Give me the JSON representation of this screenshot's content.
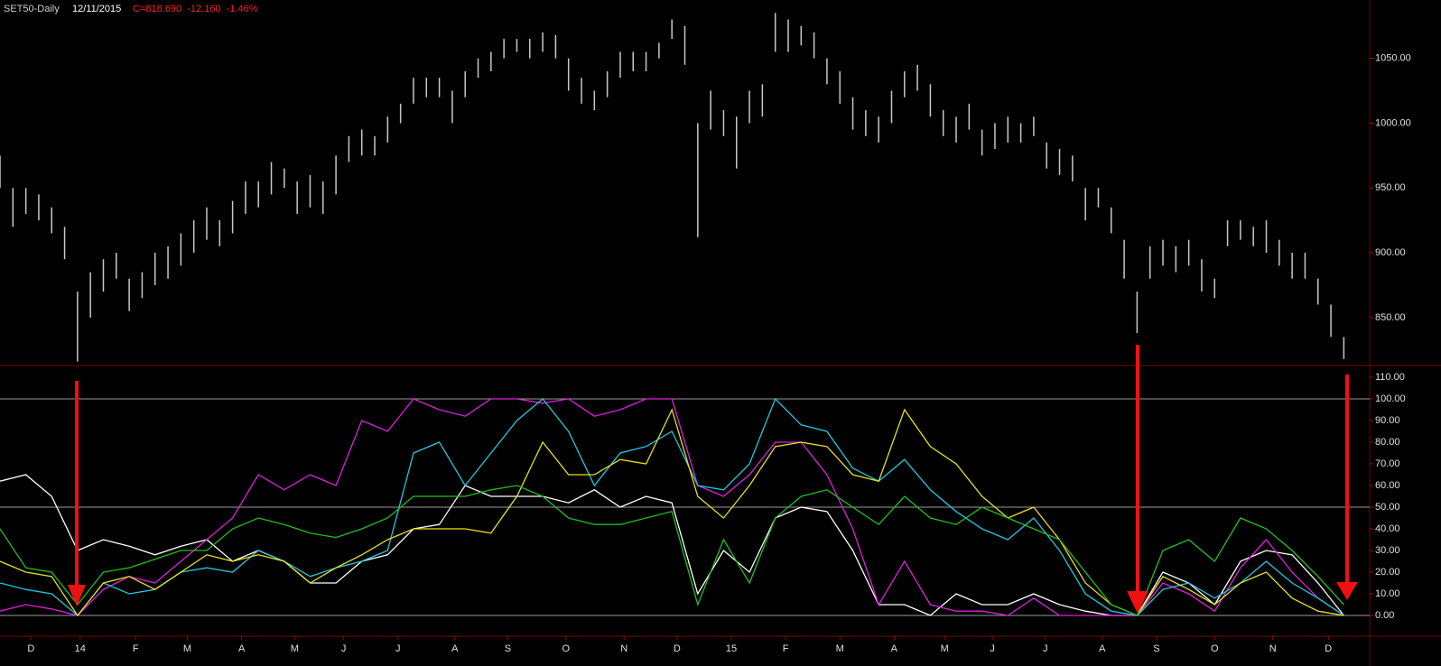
{
  "chart_data": [
    {
      "type": "ohlc",
      "title": "SET50-Daily",
      "date": "12/11/2015",
      "annotation": "C=818.690  -12.160  -1.46%",
      "color": "#c8c8c8",
      "x": [
        0,
        1,
        2,
        3,
        4,
        5,
        6,
        7,
        8,
        9,
        10,
        11,
        12,
        13,
        14,
        15,
        16,
        17,
        18,
        19,
        20,
        21,
        22,
        23,
        24,
        25,
        26,
        27,
        28,
        29,
        30,
        31,
        32,
        33,
        34,
        35,
        36,
        37,
        38,
        39,
        40,
        41,
        42,
        43,
        44,
        45,
        46,
        47,
        48,
        49,
        50,
        51,
        52,
        53,
        54,
        55,
        56,
        57,
        58,
        59,
        60,
        61,
        62,
        63,
        64,
        65,
        66,
        67,
        68,
        69,
        70,
        71,
        72,
        73,
        74,
        75,
        76,
        77,
        78,
        79,
        80,
        81,
        82,
        83,
        84,
        85,
        86,
        87,
        88,
        89,
        90,
        91,
        92,
        93,
        94,
        95,
        96,
        97,
        98,
        99,
        100,
        101,
        102,
        103,
        104
      ],
      "high": [
        975,
        950,
        950,
        945,
        935,
        920,
        870,
        885,
        895,
        900,
        880,
        885,
        900,
        905,
        915,
        925,
        935,
        925,
        940,
        955,
        955,
        970,
        965,
        955,
        960,
        955,
        975,
        990,
        995,
        990,
        1005,
        1015,
        1035,
        1035,
        1035,
        1025,
        1040,
        1050,
        1055,
        1065,
        1065,
        1065,
        1070,
        1068,
        1050,
        1035,
        1025,
        1040,
        1055,
        1055,
        1055,
        1062,
        1080,
        1075,
        1000,
        1025,
        1010,
        1005,
        1025,
        1030,
        1085,
        1080,
        1075,
        1070,
        1050,
        1040,
        1020,
        1010,
        1005,
        1025,
        1040,
        1045,
        1030,
        1010,
        1005,
        1015,
        995,
        1000,
        1005,
        1000,
        1005,
        985,
        980,
        975,
        950,
        950,
        935,
        910,
        870,
        905,
        910,
        905,
        910,
        895,
        880,
        925,
        925,
        920,
        925,
        910,
        900,
        900,
        880,
        860,
        835
      ],
      "low": [
        950,
        920,
        930,
        925,
        915,
        895,
        816,
        850,
        870,
        880,
        855,
        865,
        875,
        880,
        890,
        900,
        910,
        905,
        915,
        930,
        935,
        945,
        950,
        930,
        935,
        930,
        945,
        970,
        975,
        975,
        985,
        1000,
        1015,
        1020,
        1020,
        1000,
        1020,
        1035,
        1040,
        1050,
        1055,
        1050,
        1055,
        1050,
        1025,
        1015,
        1010,
        1020,
        1035,
        1040,
        1040,
        1050,
        1065,
        1045,
        912,
        995,
        990,
        965,
        1000,
        1005,
        1055,
        1055,
        1060,
        1050,
        1030,
        1015,
        995,
        990,
        985,
        1000,
        1020,
        1025,
        1005,
        990,
        985,
        995,
        975,
        980,
        985,
        985,
        990,
        965,
        960,
        955,
        925,
        935,
        915,
        880,
        838,
        880,
        890,
        885,
        890,
        870,
        865,
        905,
        910,
        905,
        900,
        890,
        880,
        880,
        860,
        835,
        818
      ],
      "xlim": [
        0,
        106
      ],
      "ylim": [
        813,
        1095
      ],
      "yticks": [
        {
          "value": 1050,
          "label": "1050.00"
        },
        {
          "value": 1000,
          "label": "1000.00"
        },
        {
          "value": 950,
          "label": "950.00"
        },
        {
          "value": 900,
          "label": "900.00"
        },
        {
          "value": 850,
          "label": "850.00"
        }
      ]
    },
    {
      "type": "line",
      "x": [
        0,
        2,
        4,
        6,
        8,
        10,
        12,
        14,
        16,
        18,
        20,
        22,
        24,
        26,
        28,
        30,
        32,
        34,
        36,
        38,
        40,
        42,
        44,
        46,
        48,
        50,
        52,
        54,
        56,
        58,
        60,
        62,
        64,
        66,
        68,
        70,
        72,
        74,
        76,
        78,
        80,
        82,
        84,
        86,
        88,
        90,
        92,
        94,
        96,
        98,
        100,
        102,
        104
      ],
      "series": [
        {
          "color": "#ffffff",
          "values": [
            62,
            65,
            55,
            30,
            35,
            32,
            28,
            32,
            35,
            25,
            30,
            25,
            15,
            15,
            25,
            28,
            40,
            42,
            60,
            55,
            55,
            55,
            52,
            58,
            50,
            55,
            52,
            10,
            30,
            20,
            45,
            50,
            48,
            30,
            5,
            5,
            0,
            10,
            5,
            5,
            10,
            5,
            2,
            0,
            0,
            20,
            15,
            5,
            25,
            30,
            28,
            15,
            0
          ]
        },
        {
          "color": "#e020e0",
          "values": [
            2,
            5,
            3,
            0,
            12,
            18,
            15,
            25,
            35,
            45,
            65,
            58,
            65,
            60,
            90,
            85,
            100,
            95,
            92,
            100,
            100,
            98,
            100,
            92,
            95,
            100,
            100,
            60,
            55,
            65,
            80,
            80,
            65,
            40,
            5,
            25,
            5,
            2,
            2,
            0,
            8,
            0,
            0,
            0,
            0,
            15,
            10,
            2,
            22,
            35,
            20,
            8,
            0
          ]
        },
        {
          "color": "#20c8e0",
          "values": [
            15,
            12,
            10,
            0,
            15,
            10,
            12,
            20,
            22,
            20,
            30,
            25,
            18,
            22,
            25,
            30,
            75,
            80,
            60,
            75,
            90,
            100,
            85,
            60,
            75,
            78,
            85,
            60,
            58,
            70,
            100,
            88,
            85,
            68,
            62,
            72,
            58,
            48,
            40,
            35,
            45,
            30,
            10,
            2,
            0,
            12,
            15,
            8,
            15,
            25,
            15,
            8,
            0
          ]
        },
        {
          "color": "#e8e020",
          "values": [
            25,
            20,
            18,
            0,
            15,
            18,
            12,
            20,
            28,
            25,
            28,
            25,
            15,
            22,
            28,
            35,
            40,
            40,
            40,
            38,
            55,
            80,
            65,
            65,
            72,
            70,
            95,
            55,
            45,
            60,
            78,
            80,
            78,
            65,
            62,
            95,
            78,
            70,
            55,
            45,
            50,
            35,
            15,
            5,
            0,
            18,
            12,
            5,
            15,
            20,
            8,
            2,
            0
          ]
        },
        {
          "color": "#20c020",
          "values": [
            40,
            22,
            20,
            5,
            20,
            22,
            26,
            30,
            30,
            40,
            45,
            42,
            38,
            36,
            40,
            45,
            55,
            55,
            55,
            58,
            60,
            55,
            45,
            42,
            42,
            45,
            48,
            5,
            35,
            15,
            45,
            55,
            58,
            50,
            42,
            55,
            45,
            42,
            50,
            45,
            40,
            35,
            20,
            5,
            0,
            30,
            35,
            25,
            45,
            40,
            30,
            18,
            5
          ]
        }
      ],
      "hlines": [
        100,
        50,
        0
      ],
      "xlim": [
        0,
        106
      ],
      "ylim": [
        -9.6,
        115.4
      ],
      "yticks": [
        {
          "value": 110,
          "label": "110.00"
        },
        {
          "value": 100,
          "label": "100.00"
        },
        {
          "value": 90,
          "label": "90.00"
        },
        {
          "value": 80,
          "label": "80.00"
        },
        {
          "value": 70,
          "label": "70.00"
        },
        {
          "value": 60,
          "label": "60.00"
        },
        {
          "value": 50,
          "label": "50.00"
        },
        {
          "value": 40,
          "label": "40.00"
        },
        {
          "value": 30,
          "label": "30.00"
        },
        {
          "value": 20,
          "label": "20.00"
        },
        {
          "value": 10,
          "label": "10.00"
        },
        {
          "value": 0,
          "label": "0.00"
        }
      ],
      "xticks": [
        {
          "value": 2.4,
          "label": "D"
        },
        {
          "value": 6.2,
          "label": "14"
        },
        {
          "value": 10.5,
          "label": "F"
        },
        {
          "value": 14.5,
          "label": "M"
        },
        {
          "value": 18.7,
          "label": "A"
        },
        {
          "value": 22.8,
          "label": "M"
        },
        {
          "value": 26.6,
          "label": "J"
        },
        {
          "value": 30.8,
          "label": "J"
        },
        {
          "value": 35.2,
          "label": "A"
        },
        {
          "value": 39.3,
          "label": "S"
        },
        {
          "value": 43.8,
          "label": "O"
        },
        {
          "value": 48.3,
          "label": "N"
        },
        {
          "value": 52.4,
          "label": "D"
        },
        {
          "value": 56.6,
          "label": "15"
        },
        {
          "value": 60.8,
          "label": "F"
        },
        {
          "value": 65,
          "label": "M"
        },
        {
          "value": 69.2,
          "label": "A"
        },
        {
          "value": 73.1,
          "label": "M"
        },
        {
          "value": 76.8,
          "label": "J"
        },
        {
          "value": 80.9,
          "label": "J"
        },
        {
          "value": 85.3,
          "label": "A"
        },
        {
          "value": 89.5,
          "label": "S"
        },
        {
          "value": 94,
          "label": "O"
        },
        {
          "value": 98.5,
          "label": "N"
        },
        {
          "value": 102.8,
          "label": "D"
        }
      ]
    }
  ]
}
